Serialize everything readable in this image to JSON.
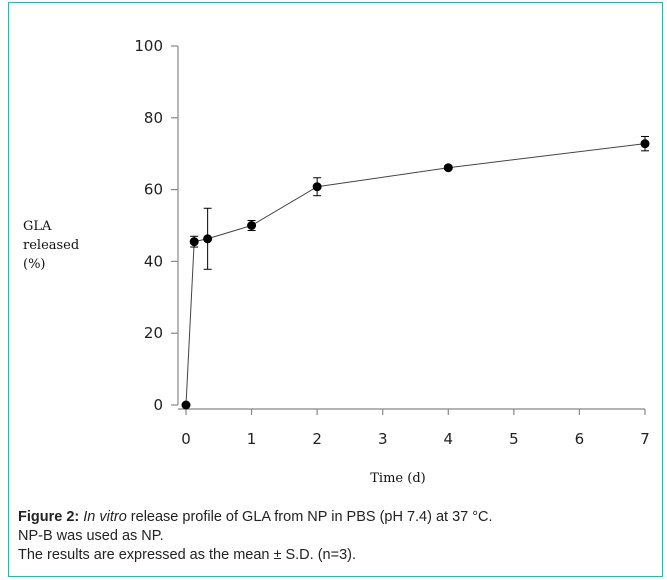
{
  "caption": {
    "label": "Figure 2:",
    "italic": "In vitro",
    "line1_rest": " release profile of GLA from NP in PBS (pH 7.4) at 37 °C.",
    "line2": "NP-B was used as NP.",
    "line3": "The results are expressed as the mean ± S.D. (n=3)."
  },
  "chart_data": {
    "type": "line",
    "title": "",
    "xlabel": "Time  (d)",
    "ylabel_lines": [
      "GLA",
      "released",
      "(%)"
    ],
    "xlim": [
      0,
      7
    ],
    "ylim": [
      0,
      100
    ],
    "x_ticks": [
      0,
      1,
      2,
      3,
      4,
      5,
      6,
      7
    ],
    "y_ticks": [
      0,
      20,
      40,
      60,
      80,
      100
    ],
    "grid": false,
    "legend": "none",
    "series": [
      {
        "x": [
          0,
          0.125,
          0.33,
          1,
          2,
          4,
          7
        ],
        "y": [
          0,
          45.5,
          46.3,
          50,
          60.8,
          66.1,
          72.8
        ],
        "error": [
          0,
          1.5,
          8.5,
          1.4,
          2.5,
          0.5,
          2.0
        ],
        "color": "#000000"
      }
    ]
  }
}
